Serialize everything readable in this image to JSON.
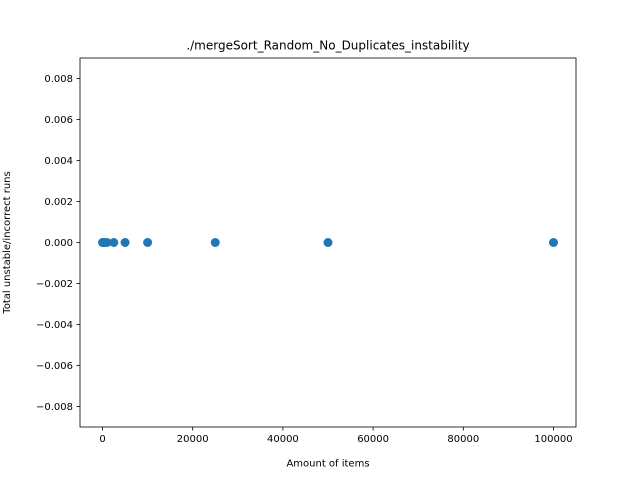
{
  "chart_data": {
    "type": "scatter",
    "title": "./mergeSort_Random_No_Duplicates_instability",
    "xlabel": "Amount of items",
    "ylabel": "Total unstable/incorrect runs",
    "x": [
      10,
      100,
      500,
      1000,
      2500,
      5000,
      10000,
      25000,
      50000,
      100000
    ],
    "y": [
      0,
      0,
      0,
      0,
      0,
      0,
      0,
      0,
      0,
      0
    ],
    "xlim": [
      -4990,
      104990
    ],
    "ylim": [
      -0.009,
      0.009
    ],
    "xticks": [
      0,
      20000,
      40000,
      60000,
      80000,
      100000
    ],
    "yticks": [
      -0.008,
      -0.006,
      -0.004,
      -0.002,
      0.0,
      0.002,
      0.004,
      0.006,
      0.008
    ],
    "xtick_labels": [
      "0",
      "20000",
      "40000",
      "60000",
      "80000",
      "100000"
    ],
    "ytick_labels": [
      "−0.008",
      "−0.006",
      "−0.004",
      "−0.002",
      "0.000",
      "0.002",
      "0.004",
      "0.006",
      "0.008"
    ],
    "grid": false,
    "marker_color": "#1f77b4"
  }
}
